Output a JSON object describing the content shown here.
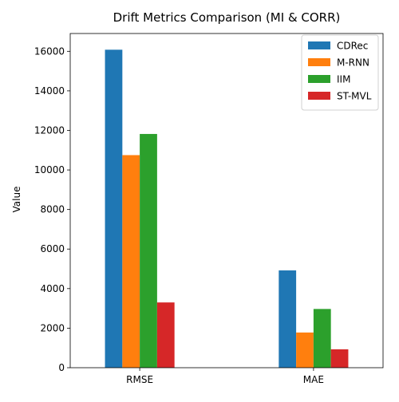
{
  "chart_data": {
    "type": "bar",
    "title": "Drift Metrics Comparison (MI & CORR)",
    "xlabel": "",
    "ylabel": "Value",
    "categories": [
      "RMSE",
      "MAE"
    ],
    "ylim": [
      0,
      16900
    ],
    "yticks": [
      0,
      2000,
      4000,
      6000,
      8000,
      10000,
      12000,
      14000,
      16000
    ],
    "grid": false,
    "legend_position": "top-right",
    "series": [
      {
        "name": "CDRec",
        "color": "#1f77b4",
        "values": [
          16080,
          4920
        ]
      },
      {
        "name": "M-RNN",
        "color": "#ff7f0e",
        "values": [
          10750,
          1780
        ]
      },
      {
        "name": "IIM",
        "color": "#2ca02c",
        "values": [
          11820,
          2970
        ]
      },
      {
        "name": "ST-MVL",
        "color": "#d62728",
        "values": [
          3300,
          930
        ]
      }
    ]
  }
}
